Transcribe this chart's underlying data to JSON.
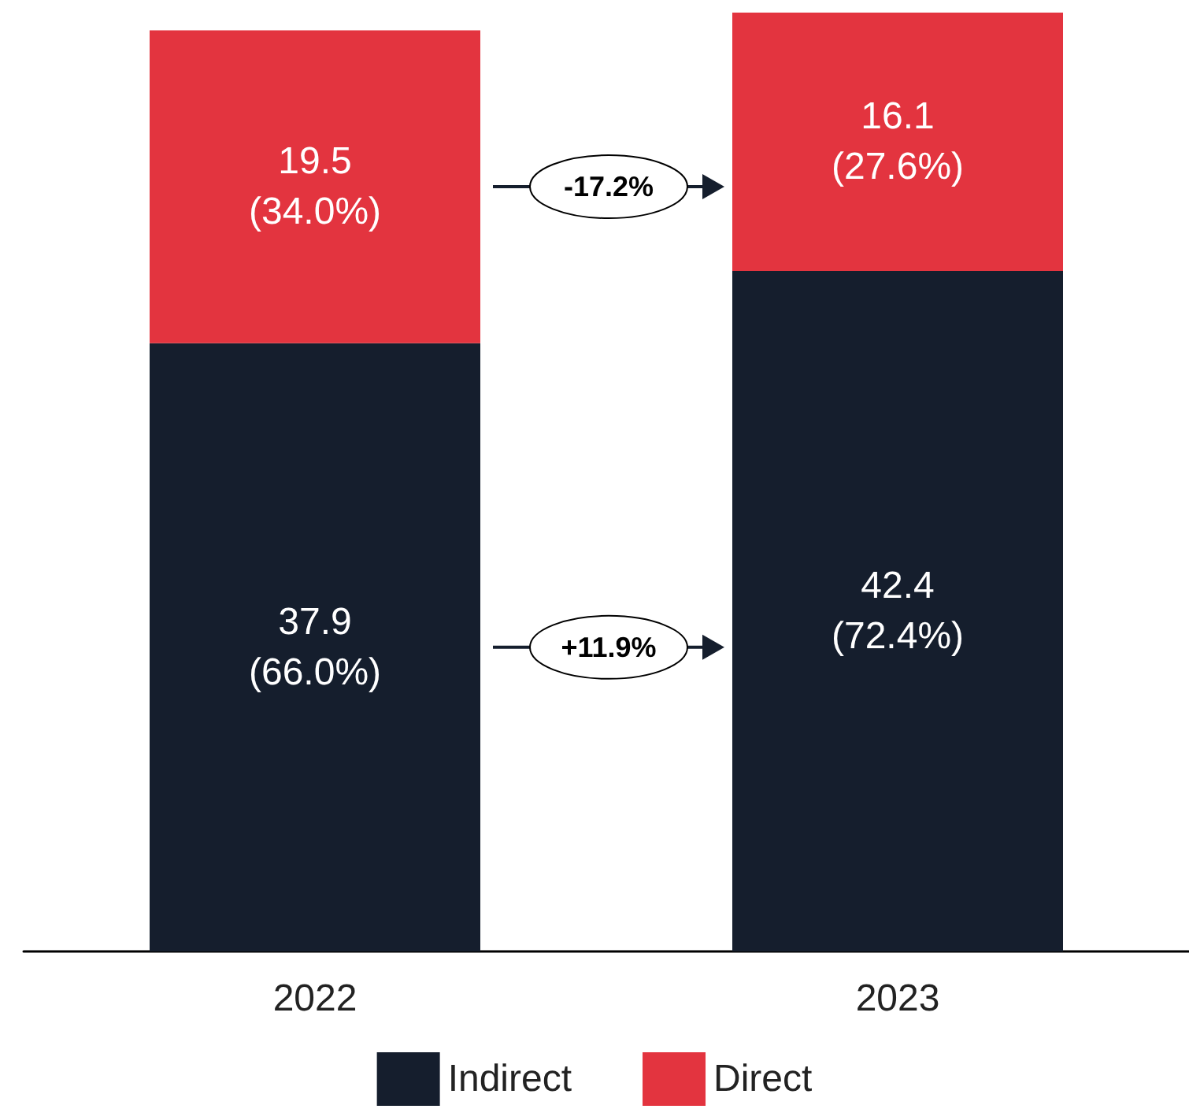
{
  "chart_data": {
    "type": "bar",
    "stacked": true,
    "categories": [
      "2022",
      "2023"
    ],
    "series": [
      {
        "name": "Indirect",
        "color": "#151e2d",
        "values": [
          37.9,
          42.4
        ],
        "value_labels": [
          "37.9\n(66.0%)",
          "42.4\n(72.4%)"
        ]
      },
      {
        "name": "Direct",
        "color": "#e3343f",
        "values": [
          19.5,
          16.1
        ],
        "value_labels": [
          "19.5\n(34.0%)",
          "16.1\n(27.6%)"
        ]
      }
    ],
    "annotations": [
      "+11.9%",
      "-17.2%"
    ],
    "legend": "bottom"
  }
}
